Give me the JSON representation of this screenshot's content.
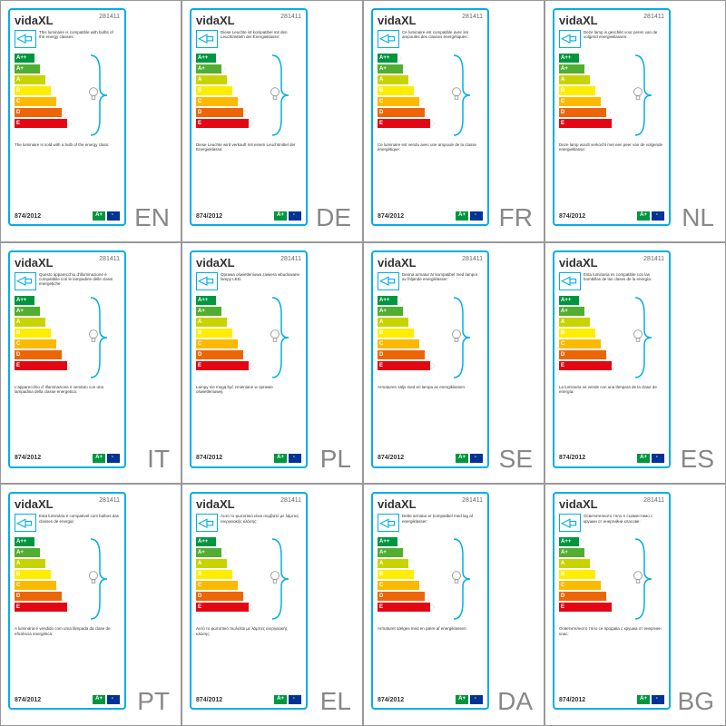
{
  "brand": "vidaXL",
  "product_number": "281411",
  "regulation": "874/2012",
  "energy_classes": [
    {
      "label": "A++",
      "color": "#009640",
      "width": 22
    },
    {
      "label": "A+",
      "color": "#52ae32",
      "width": 28
    },
    {
      "label": "A",
      "color": "#c8d400",
      "width": 34
    },
    {
      "label": "B",
      "color": "#ffed00",
      "width": 40
    },
    {
      "label": "C",
      "color": "#fbba00",
      "width": 46
    },
    {
      "label": "D",
      "color": "#ec6608",
      "width": 52
    },
    {
      "label": "E",
      "color": "#e30613",
      "width": 58
    }
  ],
  "sold_class": "A+",
  "cells": [
    {
      "lang": "EN",
      "top": "This luminaire is compatible with bulbs of the energy classes:",
      "bottom": "The luminaire is sold with a bulb of the energy class:"
    },
    {
      "lang": "DE",
      "top": "Diese Leuchte ist kompatibel mit den Leuchtmitteln der Energieklasse:",
      "bottom": "Diese Leuchte wird verkauft mit einem Leuchtmittel der Energieklasse:"
    },
    {
      "lang": "FR",
      "top": "Ce luminaire est compatible avec les ampoules des classes énergétiques:",
      "bottom": "Ce luminaire est vendu avec une ampoule de la classe énergétique:"
    },
    {
      "lang": "NL",
      "top": "Deze lamp is geschikt voor peren van de volgend energieklassen:",
      "bottom": "Deze lamp wordt verkocht met een peer van de volgende energieklasse:"
    },
    {
      "lang": "IT",
      "top": "Questo apparecchio d'illuminazione è compatibile con le lampadine delle classi energetiche:",
      "bottom": "L'apparecchio d' illuminazione è venduto con una lampadina della classe energetica:"
    },
    {
      "lang": "PL",
      "top": "Oprawa oświetleniowa zawiera wbudowane lampy LED.",
      "bottom": "Lampy nie mogą być zmieniane w oprawie oświetleniowej."
    },
    {
      "lang": "SE",
      "top": "Denna armatur är kompatibel med lampor av följande energiklasser:",
      "bottom": "Armaturen säljs med en lampa av energiklassen:"
    },
    {
      "lang": "ES",
      "top": "Esta luminaria es compatible con las bombillas de las clases de la energía:",
      "bottom": "La luminaria se vende con una lámpara de la clase de energía:"
    },
    {
      "lang": "PT",
      "top": "Esta luminária é compatível com bulbos das classes de energia:",
      "bottom": "A luminária é vendido com uma lâmpada da clase de eficiência energética:"
    },
    {
      "lang": "EL",
      "top": "Αυτό το φωτιστικό είναι συμβατό με λάμπες ενεργειακής κλάσης:",
      "bottom": "Αυτό το φωτιστικό πωλείται με λάμπες ενεργειακής κλάσης:"
    },
    {
      "lang": "DA",
      "top": "Dette armatur er kompatibel med lag af energiklasser:",
      "bottom": "Armaturet sælges med en pære af energiklassen:"
    },
    {
      "lang": "BG",
      "top": "Осветителното тяло е съвместимо с крушки от енергийни класове:",
      "bottom": "Осветителното тяло се продава с крушка от енергиен клас:"
    }
  ]
}
